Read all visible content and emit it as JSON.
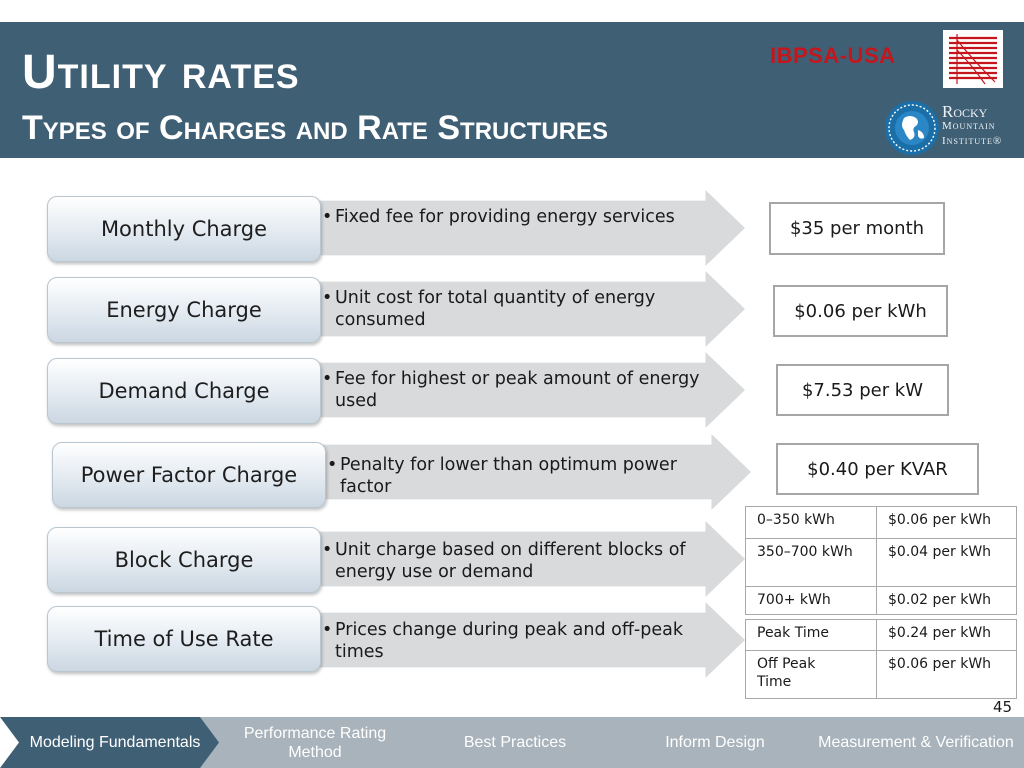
{
  "header": {
    "title": "Utility rates",
    "subtitle": "Types of Charges and Rate Structures",
    "logo_ibpsa": "IBPSA-USA",
    "logo_rmi": [
      "Rocky",
      "Mountain",
      "Institute®"
    ]
  },
  "rows": [
    {
      "label": "Monthly Charge",
      "description": "Fixed fee for providing energy services",
      "rate": "$35 per month"
    },
    {
      "label": "Energy Charge",
      "description": "Unit cost for total quantity of energy consumed",
      "rate": "$0.06 per kWh"
    },
    {
      "label": "Demand Charge",
      "description": "Fee for highest or peak amount of energy used",
      "rate": "$7.53 per kW"
    },
    {
      "label": "Power Factor Charge",
      "description": "Penalty for lower than optimum power factor",
      "rate": "$0.40 per KVAR"
    },
    {
      "label": "Block Charge",
      "description": "Unit charge based on different blocks of energy use or demand"
    },
    {
      "label": "Time of Use Rate",
      "description": "Prices change during peak and off-peak times"
    }
  ],
  "bullet": "•",
  "block_table": [
    [
      "0–350 kWh",
      "$0.06 per kWh"
    ],
    [
      "350–700 kWh",
      "$0.04 per kWh"
    ],
    [
      "700+ kWh",
      "$0.02 per kWh"
    ]
  ],
  "tou_table": [
    [
      "Peak Time",
      "$0.24 per kWh"
    ],
    [
      "Off Peak Time",
      "$0.06 per kWh"
    ]
  ],
  "page_number": "45",
  "nav": [
    {
      "label": "Modeling Fundamentals",
      "active": true
    },
    {
      "label": "Performance Rating Method",
      "active": false
    },
    {
      "label": "Best Practices",
      "active": false
    },
    {
      "label": "Inform Design",
      "active": false
    },
    {
      "label": "Measurement & Verification",
      "active": false
    }
  ],
  "colors": {
    "header_bg": "#3f5f75",
    "ibpsa_red": "#c4161c",
    "arrow_gray": "#d8dadc",
    "nav_active": "#3f5f75",
    "nav_inactive": "#a8b3bb"
  }
}
